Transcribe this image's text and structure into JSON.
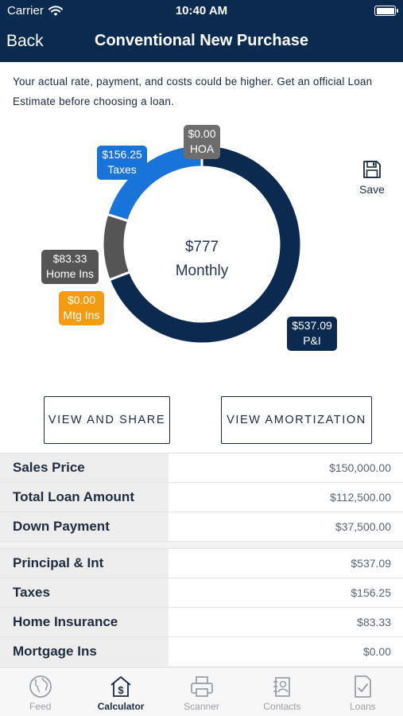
{
  "status_bar": {
    "carrier": "Carrier",
    "time": "10:40 AM"
  },
  "nav": {
    "back_label": "Back",
    "title": "Conventional New Purchase"
  },
  "disclaimer": "Your actual rate, payment, and costs could be higher. Get an official Loan Estimate before choosing a loan.",
  "chart_data": {
    "type": "pie",
    "center_amount": "$777",
    "center_label": "Monthly",
    "slices": [
      {
        "label": "P&I",
        "value": 537.09,
        "display": "$537.09",
        "color": "#0c2a4f"
      },
      {
        "label": "Mtg Ins",
        "value": 0.0,
        "display": "$0.00",
        "color": "#f39c12"
      },
      {
        "label": "Home Ins",
        "value": 83.33,
        "display": "$83.33",
        "color": "#555555"
      },
      {
        "label": "Taxes",
        "value": 156.25,
        "display": "$156.25",
        "color": "#1a73d9"
      },
      {
        "label": "HOA",
        "value": 0.0,
        "display": "$0.00",
        "color": "#6d6d6d"
      }
    ]
  },
  "save_label": "Save",
  "buttons": {
    "view_share": "VIEW AND SHARE",
    "view_amortization": "VIEW AMORTIZATION"
  },
  "loan_rows": [
    {
      "label": "Sales Price",
      "value": "$150,000.00"
    },
    {
      "label": "Total Loan Amount",
      "value": "$112,500.00"
    },
    {
      "label": "Down Payment",
      "value": "$37,500.00"
    }
  ],
  "payment_rows": [
    {
      "label": "Principal & Int",
      "value": "$537.09"
    },
    {
      "label": "Taxes",
      "value": "$156.25"
    },
    {
      "label": "Home Insurance",
      "value": "$83.33"
    },
    {
      "label": "Mortgage Ins",
      "value": "$0.00"
    }
  ],
  "tabs": [
    {
      "label": "Feed",
      "icon": "globe-icon",
      "active": false
    },
    {
      "label": "Calculator",
      "icon": "calculator-house-icon",
      "active": true
    },
    {
      "label": "Scanner",
      "icon": "printer-icon",
      "active": false
    },
    {
      "label": "Contacts",
      "icon": "contacts-icon",
      "active": false
    },
    {
      "label": "Loans",
      "icon": "document-check-icon",
      "active": false
    }
  ]
}
